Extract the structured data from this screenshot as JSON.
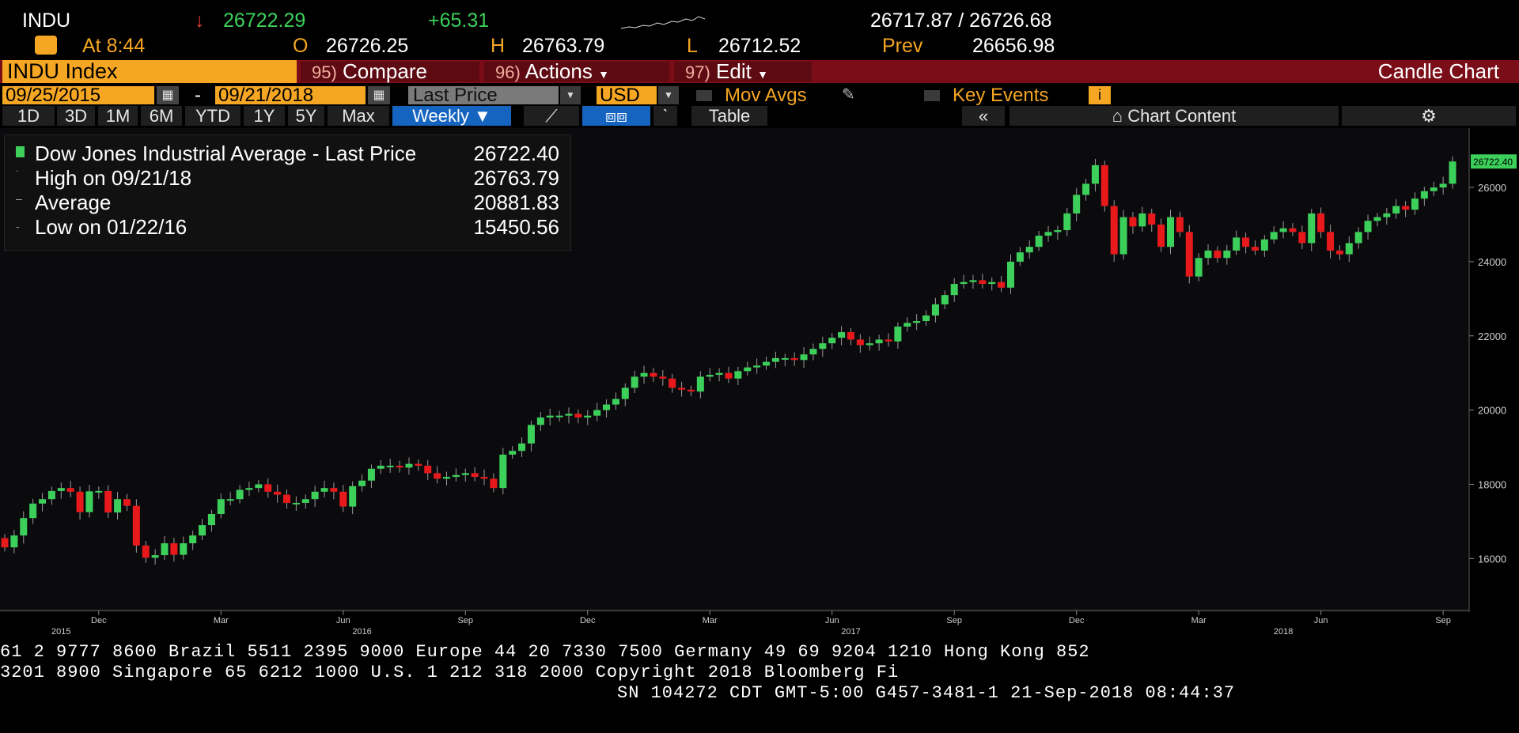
{
  "quote": {
    "ticker": "INDU",
    "arrow": "↓",
    "last": "26722.29",
    "change": "+65.31",
    "bid_ask": "26717.87 / 26726.68",
    "time_label": "At 8:44",
    "open_label": "O",
    "open": "26726.25",
    "high_label": "H",
    "high": "26763.79",
    "low_label": "L",
    "low": "26712.52",
    "prev_label": "Prev",
    "prev": "26656.98"
  },
  "menu": {
    "security": "INDU Index",
    "compare_num": "95)",
    "compare": "Compare",
    "actions_num": "96)",
    "actions": "Actions",
    "edit_num": "97)",
    "edit": "Edit",
    "title": "Candle Chart"
  },
  "controls": {
    "start_date": "09/25/2015",
    "dash": "-",
    "end_date": "09/21/2018",
    "field": "Last Price",
    "currency": "USD",
    "mov_avgs": "Mov Avgs",
    "key_events": "Key Events"
  },
  "periods": [
    "1D",
    "3D",
    "1M",
    "6M",
    "YTD",
    "1Y",
    "5Y",
    "Max"
  ],
  "frequency": "Weekly ▼",
  "toolbar": {
    "table": "Table",
    "chart_content": "Chart Content"
  },
  "legend": {
    "rows": [
      {
        "label": "Dow Jones Industrial Average - Last Price",
        "value": "26722.40"
      },
      {
        "label": "High on 09/21/18",
        "value": "26763.79"
      },
      {
        "label": "Average",
        "value": "20881.83"
      },
      {
        "label": "Low on 01/22/16",
        "value": "15450.56"
      }
    ]
  },
  "colors": {
    "up": "#3cd05a",
    "down": "#e8191b",
    "accent": "#f5a623",
    "menu": "#7a0d17"
  },
  "chart_data": {
    "type": "candlestick",
    "y_ticks": [
      16000,
      18000,
      20000,
      22000,
      24000,
      26000
    ],
    "last_label": "26722.40",
    "ylim": [
      14600,
      27600
    ],
    "x_month_labels": [
      {
        "label": "Dec",
        "week": 10
      },
      {
        "label": "Mar",
        "week": 23
      },
      {
        "label": "Jun",
        "week": 36
      },
      {
        "label": "Sep",
        "week": 49
      },
      {
        "label": "Dec",
        "week": 62
      },
      {
        "label": "Mar",
        "week": 75
      },
      {
        "label": "Jun",
        "week": 88
      },
      {
        "label": "Sep",
        "week": 101
      },
      {
        "label": "Dec",
        "week": 114
      },
      {
        "label": "Mar",
        "week": 127
      },
      {
        "label": "Jun",
        "week": 140
      },
      {
        "label": "Sep",
        "week": 153
      }
    ],
    "x_year_labels": [
      {
        "label": "2015",
        "week": 6
      },
      {
        "label": "2016",
        "week": 38
      },
      {
        "label": "2017",
        "week": 90
      },
      {
        "label": "2018",
        "week": 136
      }
    ],
    "weekly_close": [
      16300,
      16620,
      17090,
      17480,
      17600,
      17820,
      17900,
      17800,
      17250,
      17810,
      17820,
      17240,
      17600,
      17420,
      16350,
      16020,
      16090,
      16410,
      16100,
      16410,
      16620,
      16900,
      17200,
      17600,
      17600,
      17850,
      17900,
      18000,
      17800,
      17720,
      17500,
      17500,
      17600,
      17800,
      17900,
      17800,
      17400,
      17950,
      18100,
      18420,
      18500,
      18500,
      18450,
      18550,
      18500,
      18300,
      18150,
      18200,
      18250,
      18300,
      18200,
      18150,
      17900,
      18800,
      18900,
      19100,
      19600,
      19800,
      19850,
      19850,
      19900,
      19800,
      19850,
      20000,
      20150,
      20300,
      20600,
      20900,
      21000,
      20900,
      20850,
      20600,
      20550,
      20500,
      20900,
      20950,
      21000,
      20850,
      21050,
      21150,
      21200,
      21300,
      21400,
      21400,
      21350,
      21500,
      21650,
      21800,
      21950,
      22100,
      21900,
      21750,
      21800,
      21900,
      21850,
      22250,
      22350,
      22400,
      22550,
      22850,
      23100,
      23400,
      23450,
      23500,
      23400,
      23450,
      23300,
      24000,
      24250,
      24400,
      24700,
      24800,
      24850,
      25300,
      25800,
      26100,
      26600,
      25500,
      24200,
      25200,
      24950,
      25300,
      25000,
      24400,
      25200,
      24800,
      23600,
      24100,
      24300,
      24100,
      24300,
      24650,
      24400,
      24300,
      24600,
      24800,
      24900,
      24800,
      24500,
      25300,
      24800,
      24300,
      24200,
      24500,
      24800,
      25100,
      25200,
      25300,
      25500,
      25400,
      25700,
      25900,
      26000,
      26100,
      26700
    ]
  }
}
